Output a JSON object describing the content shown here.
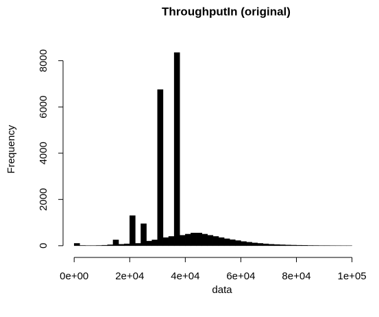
{
  "chart_data": {
    "type": "histogram",
    "title": "ThroughputIn  (original)",
    "x_label": "data",
    "y_label": "Frequency",
    "color": "#000000",
    "bins": [
      0,
      2000,
      4000,
      6000,
      8000,
      10000,
      12000,
      14000,
      16000,
      18000,
      20000,
      22000,
      24000,
      26000,
      28000,
      30000,
      32000,
      34000,
      36000,
      38000,
      40000,
      42000,
      44000,
      46000,
      48000,
      50000,
      52000,
      54000,
      56000,
      58000,
      60000,
      62000,
      64000,
      66000,
      68000,
      70000,
      72000,
      74000,
      76000,
      78000,
      80000,
      82000,
      84000,
      86000,
      88000,
      90000,
      92000,
      94000,
      96000,
      98000,
      100000
    ],
    "values": [
      100,
      10,
      5,
      5,
      10,
      20,
      40,
      250,
      60,
      80,
      1300,
      100,
      950,
      200,
      250,
      6750,
      350,
      400,
      8350,
      450,
      500,
      550,
      550,
      500,
      450,
      400,
      350,
      300,
      260,
      220,
      180,
      150,
      120,
      100,
      80,
      60,
      50,
      40,
      30,
      25,
      20,
      15,
      10,
      8,
      5,
      5,
      3,
      2,
      1,
      1
    ],
    "xlim": [
      -4000,
      108000
    ],
    "ylim": [
      -330,
      8700
    ],
    "xticks": [
      {
        "value": 0,
        "label": "0e+00"
      },
      {
        "value": 20000,
        "label": "2e+04"
      },
      {
        "value": 40000,
        "label": "4e+04"
      },
      {
        "value": 60000,
        "label": "6e+04"
      },
      {
        "value": 80000,
        "label": "8e+04"
      },
      {
        "value": 100000,
        "label": "1e+05"
      }
    ],
    "yticks": [
      0,
      2000,
      4000,
      6000,
      8000
    ]
  }
}
